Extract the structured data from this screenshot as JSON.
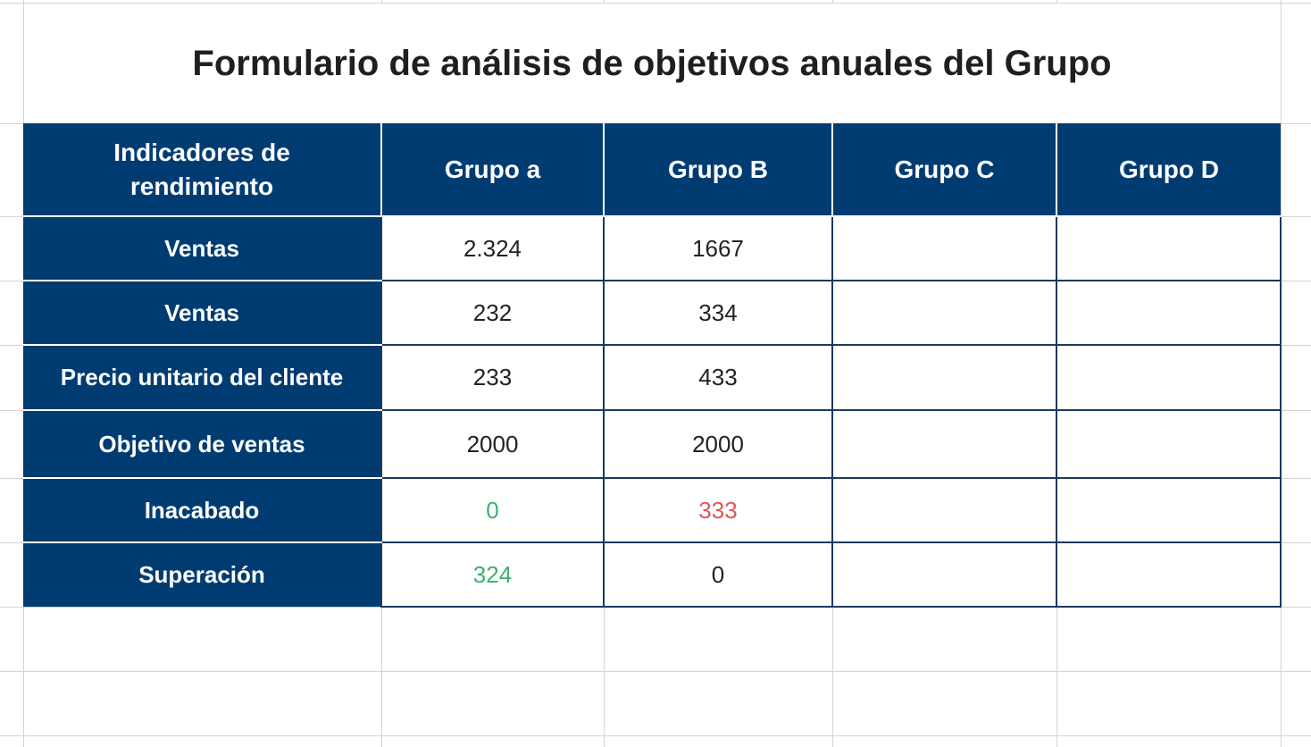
{
  "title": "Formulario de análisis de objetivos anuales del Grupo",
  "columns": [
    "Indicadores de rendimiento",
    "Grupo a",
    "Grupo B",
    "Grupo C",
    "Grupo D"
  ],
  "rows": [
    {
      "label": "Ventas",
      "values": [
        "2.324",
        "1667",
        "",
        ""
      ]
    },
    {
      "label": "Ventas",
      "values": [
        "232",
        "334",
        "",
        ""
      ]
    },
    {
      "label": "Precio unitario del cliente",
      "values": [
        "233",
        "433",
        "",
        ""
      ]
    },
    {
      "label": "Objetivo de ventas",
      "values": [
        "2000",
        "2000",
        "",
        ""
      ]
    },
    {
      "label": "Inacabado",
      "values": [
        "0",
        "333",
        "",
        ""
      ]
    },
    {
      "label": "Superación",
      "values": [
        "324",
        "0",
        "",
        ""
      ]
    }
  ],
  "colors": {
    "header_bg": "#003c72",
    "positive": "#3bb36b",
    "negative": "#e05656"
  }
}
